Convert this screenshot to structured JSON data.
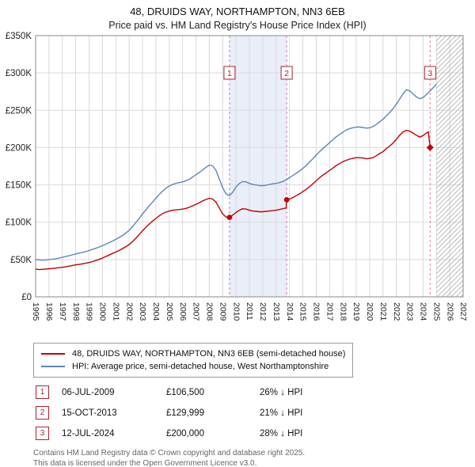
{
  "header": {
    "title": "48, DRUIDS WAY, NORTHAMPTON, NN3 6EB",
    "subtitle": "Price paid vs. HM Land Registry's House Price Index (HPI)"
  },
  "chart_data": {
    "type": "line",
    "title": "48, DRUIDS WAY, NORTHAMPTON, NN3 6EB: Price paid vs. HPI",
    "xlabel": "",
    "ylabel": "",
    "xlim": [
      1995,
      2027
    ],
    "ylim": [
      0,
      350000
    ],
    "x_axis": {
      "ticks": [
        1995,
        1996,
        1997,
        1998,
        1999,
        2000,
        2001,
        2002,
        2003,
        2004,
        2005,
        2006,
        2007,
        2008,
        2009,
        2010,
        2011,
        2012,
        2013,
        2014,
        2015,
        2016,
        2017,
        2018,
        2019,
        2020,
        2021,
        2022,
        2023,
        2024,
        2025,
        2026,
        2027
      ]
    },
    "y_axis": {
      "ticks": [
        [
          0,
          "£0"
        ],
        [
          50000,
          "£50K"
        ],
        [
          100000,
          "£100K"
        ],
        [
          150000,
          "£150K"
        ],
        [
          200000,
          "£200K"
        ],
        [
          250000,
          "£250K"
        ],
        [
          300000,
          "£300K"
        ],
        [
          350000,
          "£350K"
        ]
      ]
    },
    "colors": {
      "property_line": "#c40000",
      "hpi_line": "#5c87b5",
      "dash": "#cc4477",
      "shade": "#e9eef8",
      "hatch": "#bbbbbb",
      "marker_box": "#aa2233",
      "grid": "#d9d9d9",
      "plot_border": "#888888"
    },
    "series": [
      {
        "name": "48, DRUIDS WAY, NORTHAMPTON, NN3 6EB (semi-detached house)",
        "color": "#c40000",
        "x": [
          1995.0,
          1995.25,
          1995.5,
          1995.75,
          1996.0,
          1996.25,
          1996.5,
          1996.75,
          1997.0,
          1997.25,
          1997.5,
          1997.75,
          1998.0,
          1998.25,
          1998.5,
          1998.75,
          1999.0,
          1999.25,
          1999.5,
          1999.75,
          2000.0,
          2000.25,
          2000.5,
          2000.75,
          2001.0,
          2001.25,
          2001.5,
          2001.75,
          2002.0,
          2002.25,
          2002.5,
          2002.75,
          2003.0,
          2003.25,
          2003.5,
          2003.75,
          2004.0,
          2004.25,
          2004.5,
          2004.75,
          2005.0,
          2005.25,
          2005.5,
          2005.75,
          2006.0,
          2006.25,
          2006.5,
          2006.75,
          2007.0,
          2007.25,
          2007.5,
          2007.75,
          2008.0,
          2008.25,
          2008.5,
          2008.75,
          2009.0,
          2009.25,
          2009.51,
          2009.75,
          2010.0,
          2010.25,
          2010.5,
          2010.75,
          2011.0,
          2011.25,
          2011.5,
          2011.75,
          2012.0,
          2012.25,
          2012.5,
          2012.75,
          2013.0,
          2013.25,
          2013.5,
          2013.75,
          2013.79,
          2014.0,
          2014.25,
          2014.5,
          2014.75,
          2015.0,
          2015.25,
          2015.5,
          2015.75,
          2016.0,
          2016.25,
          2016.5,
          2016.75,
          2017.0,
          2017.25,
          2017.5,
          2017.75,
          2018.0,
          2018.25,
          2018.5,
          2018.75,
          2019.0,
          2019.25,
          2019.5,
          2019.75,
          2020.0,
          2020.25,
          2020.5,
          2020.75,
          2021.0,
          2021.25,
          2021.5,
          2021.75,
          2022.0,
          2022.25,
          2022.5,
          2022.75,
          2023.0,
          2023.25,
          2023.5,
          2023.75,
          2024.0,
          2024.25,
          2024.4,
          2024.53
        ],
        "values": [
          37000,
          36500,
          36800,
          37200,
          37600,
          38000,
          38500,
          39000,
          39600,
          40200,
          41000,
          42000,
          42800,
          43400,
          44200,
          45000,
          46000,
          47200,
          48600,
          50200,
          52000,
          54000,
          56000,
          58000,
          60000,
          62200,
          64600,
          67200,
          70000,
          74000,
          78500,
          83500,
          88500,
          93000,
          97500,
          101500,
          105000,
          108500,
          111500,
          113500,
          115000,
          116000,
          116500,
          117000,
          117500,
          118500,
          120000,
          122000,
          124000,
          126000,
          128500,
          130500,
          132000,
          131000,
          127000,
          119000,
          111000,
          106800,
          106500,
          109500,
          113000,
          116000,
          118000,
          117500,
          116000,
          115000,
          114500,
          114000,
          114000,
          114500,
          115000,
          115500,
          116000,
          117000,
          118000,
          119000,
          129999,
          131000,
          133000,
          135500,
          138000,
          141000,
          144000,
          147500,
          151500,
          155500,
          159500,
          163000,
          166000,
          169500,
          172500,
          176000,
          178500,
          181000,
          183000,
          184500,
          185500,
          186500,
          186500,
          186000,
          185000,
          185500,
          186500,
          189000,
          192000,
          194500,
          198500,
          202000,
          206000,
          211000,
          216500,
          221000,
          223000,
          222000,
          219500,
          216500,
          214000,
          216000,
          219500,
          221000,
          200000
        ]
      },
      {
        "name": "HPI: Average price, semi-detached house, West Northamptonshire",
        "color": "#5c87b5",
        "x": [
          1995.0,
          1995.25,
          1995.5,
          1995.75,
          1996.0,
          1996.25,
          1996.5,
          1996.75,
          1997.0,
          1997.25,
          1997.5,
          1997.75,
          1998.0,
          1998.25,
          1998.5,
          1998.75,
          1999.0,
          1999.25,
          1999.5,
          1999.75,
          2000.0,
          2000.25,
          2000.5,
          2000.75,
          2001.0,
          2001.25,
          2001.5,
          2001.75,
          2002.0,
          2002.25,
          2002.5,
          2002.75,
          2003.0,
          2003.25,
          2003.5,
          2003.75,
          2004.0,
          2004.25,
          2004.5,
          2004.75,
          2005.0,
          2005.25,
          2005.5,
          2005.75,
          2006.0,
          2006.25,
          2006.5,
          2006.75,
          2007.0,
          2007.25,
          2007.5,
          2007.75,
          2008.0,
          2008.25,
          2008.5,
          2008.75,
          2009.0,
          2009.25,
          2009.5,
          2009.75,
          2010.0,
          2010.25,
          2010.5,
          2010.75,
          2011.0,
          2011.25,
          2011.5,
          2011.75,
          2012.0,
          2012.25,
          2012.5,
          2012.75,
          2013.0,
          2013.25,
          2013.5,
          2013.75,
          2014.0,
          2014.25,
          2014.5,
          2014.75,
          2015.0,
          2015.25,
          2015.5,
          2015.75,
          2016.0,
          2016.25,
          2016.5,
          2016.75,
          2017.0,
          2017.25,
          2017.5,
          2017.75,
          2018.0,
          2018.25,
          2018.5,
          2018.75,
          2019.0,
          2019.25,
          2019.5,
          2019.75,
          2020.0,
          2020.25,
          2020.5,
          2020.75,
          2021.0,
          2021.25,
          2021.5,
          2021.75,
          2022.0,
          2022.25,
          2022.5,
          2022.75,
          2023.0,
          2023.25,
          2023.5,
          2023.75,
          2024.0,
          2024.25,
          2024.5,
          2024.75,
          2025.0
        ],
        "values": [
          50000,
          49500,
          49000,
          49500,
          50000,
          50500,
          51000,
          52000,
          53000,
          54000,
          55000,
          56200,
          57500,
          58500,
          59500,
          60700,
          62000,
          63500,
          65000,
          66700,
          68500,
          70500,
          72500,
          74700,
          77000,
          79500,
          82200,
          85400,
          89000,
          94000,
          99500,
          105000,
          111000,
          116500,
          122000,
          127000,
          132000,
          137000,
          141500,
          145500,
          148500,
          150500,
          152000,
          153000,
          154000,
          155500,
          157500,
          160500,
          163500,
          166500,
          170000,
          173500,
          176500,
          175500,
          169500,
          158000,
          146000,
          138000,
          135500,
          140000,
          147000,
          152000,
          154500,
          154000,
          152000,
          150500,
          150000,
          149000,
          149000,
          149500,
          150500,
          151500,
          152000,
          153000,
          154500,
          156500,
          159500,
          162500,
          165500,
          168500,
          172000,
          176000,
          180500,
          185000,
          190000,
          194500,
          198500,
          202500,
          206500,
          210500,
          214500,
          217500,
          220500,
          223500,
          225500,
          226500,
          227500,
          227500,
          227000,
          226000,
          226500,
          228000,
          231000,
          234500,
          238000,
          242500,
          247000,
          252000,
          258000,
          265000,
          272000,
          277500,
          276000,
          272000,
          268000,
          265500,
          267000,
          271000,
          275500,
          280000,
          285000
        ]
      }
    ],
    "markers": [
      {
        "label": "1",
        "x": 2009.51,
        "value": 106500,
        "shape": "circle"
      },
      {
        "label": "2",
        "x": 2013.79,
        "value": 129999,
        "shape": "circle"
      },
      {
        "label": "3",
        "x": 2024.53,
        "value": 200000,
        "shape": "diamond"
      }
    ],
    "shaded_span": {
      "from": 2009.51,
      "to": 2013.79
    },
    "hatched_span": {
      "from": 2025.0,
      "to": 2027.0
    },
    "grid": true,
    "legend_position": "below"
  },
  "legend": {
    "items": [
      {
        "label": "48, DRUIDS WAY, NORTHAMPTON, NN3 6EB (semi-detached house)"
      },
      {
        "label": "HPI: Average price, semi-detached house, West Northamptonshire"
      }
    ]
  },
  "transactions": [
    {
      "n": "1",
      "date": "06-JUL-2009",
      "price": "£106,500",
      "hpi": "26% ↓ HPI"
    },
    {
      "n": "2",
      "date": "15-OCT-2013",
      "price": "£129,999",
      "hpi": "21% ↓ HPI"
    },
    {
      "n": "3",
      "date": "12-JUL-2024",
      "price": "£200,000",
      "hpi": "28% ↓ HPI"
    }
  ],
  "footer": {
    "line1": "Contains HM Land Registry data © Crown copyright and database right 2025.",
    "line2": "This data is licensed under the Open Government Licence v3.0."
  }
}
